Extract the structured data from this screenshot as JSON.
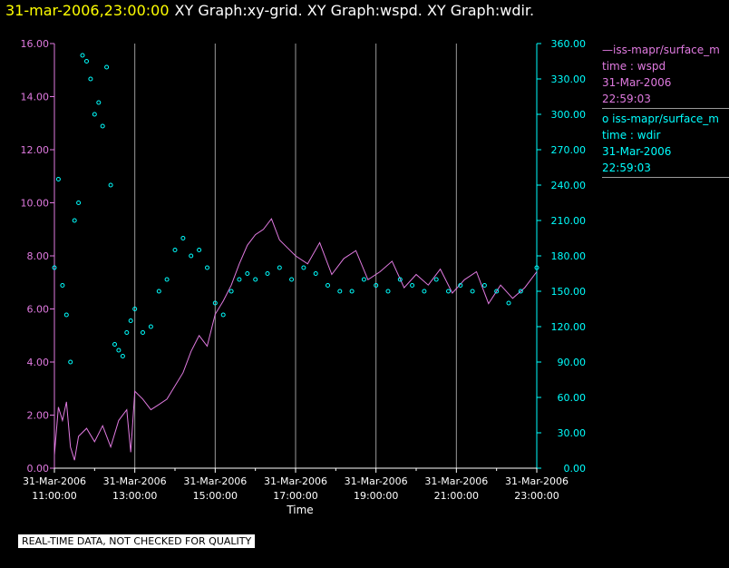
{
  "header": {
    "timestamp": "31-mar-2006,23:00:00",
    "graph_titles": "XY Graph:xy-grid.  XY Graph:wspd.  XY Graph:wdir."
  },
  "colors": {
    "background": "#000000",
    "wspd": "#e07ae0",
    "wdir": "#00ffff",
    "timestamp": "#ffff00",
    "grid": "#9a9a9a",
    "text": "#ffffff"
  },
  "legend": {
    "wspd": {
      "name": "—iss-mapr/surface_m",
      "field": "time : wspd",
      "date": "31-Mar-2006",
      "time": "22:59:03"
    },
    "wdir": {
      "name": "o  iss-mapr/surface_m",
      "field": "time : wdir",
      "date": "31-Mar-2006",
      "time": "22:59:03"
    }
  },
  "notice": "REAL-TIME DATA, NOT CHECKED FOR QUALITY",
  "chart_data": {
    "type": "line",
    "xlabel": "Time",
    "x_range": [
      "11:00:00",
      "23:00:00"
    ],
    "x_ticks": [
      {
        "date": "31-Mar-2006",
        "time": "11:00:00",
        "hour": 11
      },
      {
        "date": "31-Mar-2006",
        "time": "13:00:00",
        "hour": 13
      },
      {
        "date": "31-Mar-2006",
        "time": "15:00:00",
        "hour": 15
      },
      {
        "date": "31-Mar-2006",
        "time": "17:00:00",
        "hour": 17
      },
      {
        "date": "31-Mar-2006",
        "time": "19:00:00",
        "hour": 19
      },
      {
        "date": "31-Mar-2006",
        "time": "21:00:00",
        "hour": 21
      },
      {
        "date": "31-Mar-2006",
        "time": "23:00:00",
        "hour": 23
      }
    ],
    "vertical_gridlines_hours": [
      13,
      15,
      17,
      19,
      21
    ],
    "y_left": {
      "min": 0,
      "max": 16,
      "ticks": [
        "0.00",
        "2.00",
        "4.00",
        "6.00",
        "8.00",
        "10.00",
        "12.00",
        "14.00",
        "16.00"
      ]
    },
    "y_right": {
      "min": 0,
      "max": 360,
      "ticks": [
        "0.00",
        "30.00",
        "60.00",
        "90.00",
        "120.00",
        "150.00",
        "180.00",
        "210.00",
        "240.00",
        "270.00",
        "300.00",
        "330.00",
        "360.00"
      ]
    },
    "series": [
      {
        "key": "wspd",
        "axis": "left",
        "style": "line",
        "x": [
          11.0,
          11.1,
          11.2,
          11.3,
          11.4,
          11.5,
          11.6,
          11.8,
          12.0,
          12.2,
          12.4,
          12.6,
          12.8,
          12.9,
          13.0,
          13.2,
          13.4,
          13.6,
          13.8,
          14.0,
          14.2,
          14.4,
          14.6,
          14.8,
          15.0,
          15.2,
          15.4,
          15.6,
          15.8,
          16.0,
          16.2,
          16.4,
          16.6,
          16.8,
          17.0,
          17.3,
          17.6,
          17.9,
          18.2,
          18.5,
          18.8,
          19.1,
          19.4,
          19.7,
          20.0,
          20.3,
          20.6,
          20.9,
          21.2,
          21.5,
          21.8,
          22.1,
          22.4,
          22.7,
          23.0
        ],
        "y": [
          0.5,
          2.3,
          1.8,
          2.5,
          0.8,
          0.3,
          1.2,
          1.5,
          1.0,
          1.6,
          0.8,
          1.8,
          2.2,
          0.6,
          2.9,
          2.6,
          2.2,
          2.4,
          2.6,
          3.1,
          3.6,
          4.4,
          5.0,
          4.6,
          5.8,
          6.3,
          6.9,
          7.7,
          8.4,
          8.8,
          9.0,
          9.4,
          8.6,
          8.3,
          8.0,
          7.7,
          8.5,
          7.3,
          7.9,
          8.2,
          7.1,
          7.4,
          7.8,
          6.8,
          7.3,
          6.9,
          7.5,
          6.6,
          7.1,
          7.4,
          6.2,
          6.9,
          6.4,
          6.8,
          7.4
        ]
      },
      {
        "key": "wdir",
        "axis": "right",
        "style": "markers",
        "x": [
          11.0,
          11.1,
          11.2,
          11.3,
          11.4,
          11.5,
          11.6,
          11.7,
          11.8,
          11.9,
          12.0,
          12.1,
          12.2,
          12.3,
          12.4,
          12.5,
          12.6,
          12.7,
          12.8,
          12.9,
          13.0,
          13.2,
          13.4,
          13.6,
          13.8,
          14.0,
          14.2,
          14.4,
          14.6,
          14.8,
          15.0,
          15.2,
          15.4,
          15.6,
          15.8,
          16.0,
          16.3,
          16.6,
          16.9,
          17.2,
          17.5,
          17.8,
          18.1,
          18.4,
          18.7,
          19.0,
          19.3,
          19.6,
          19.9,
          20.2,
          20.5,
          20.8,
          21.1,
          21.4,
          21.7,
          22.0,
          22.3,
          22.6,
          23.0
        ],
        "y": [
          170,
          245,
          155,
          130,
          90,
          210,
          225,
          350,
          345,
          330,
          300,
          310,
          290,
          340,
          240,
          105,
          100,
          95,
          115,
          125,
          135,
          115,
          120,
          150,
          160,
          185,
          195,
          180,
          185,
          170,
          140,
          130,
          150,
          160,
          165,
          160,
          165,
          170,
          160,
          170,
          165,
          155,
          150,
          150,
          160,
          155,
          150,
          160,
          155,
          150,
          160,
          150,
          155,
          150,
          155,
          150,
          140,
          150,
          170
        ]
      }
    ]
  }
}
